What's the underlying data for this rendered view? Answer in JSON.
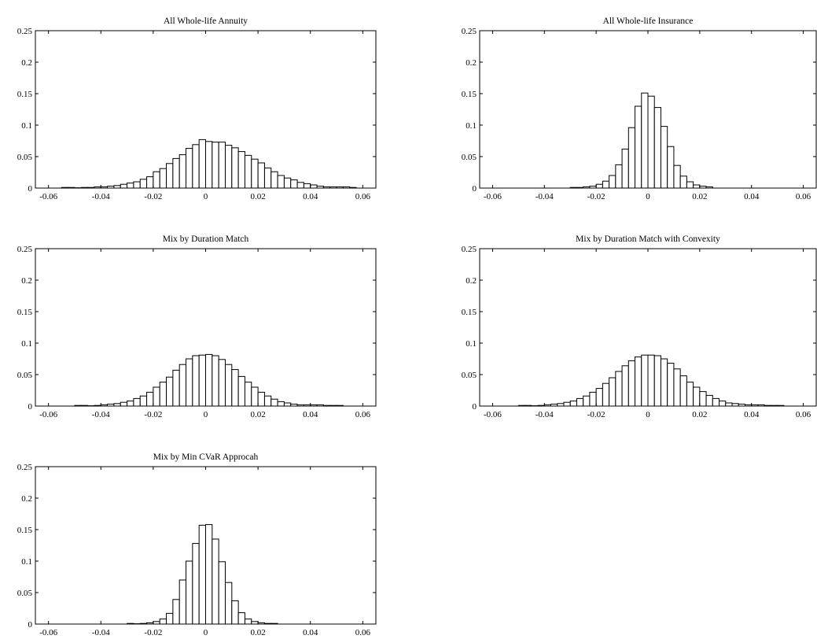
{
  "chart_data": [
    {
      "type": "bar",
      "title": "All Whole-life Annuity",
      "xlabel": "",
      "ylabel": "",
      "xlim": [
        -0.065,
        0.065
      ],
      "ylim": [
        0,
        0.25
      ],
      "xticks": [
        -0.06,
        -0.04,
        -0.02,
        0,
        0.02,
        0.04,
        0.06
      ],
      "xtick_labels": [
        "-0.06",
        "-0.04",
        "-0.02",
        "0",
        "0.02",
        "0.04",
        "0.06"
      ],
      "yticks": [
        0,
        0.05,
        0.1,
        0.15,
        0.2,
        0.25
      ],
      "ytick_labels": [
        "0",
        "0.05",
        "0.1",
        "0.15",
        "0.2",
        "0.25"
      ],
      "bin_start": -0.055,
      "bin_width": 0.0025,
      "values": [
        0.001,
        0.001,
        0.0005,
        0.001,
        0.001,
        0.002,
        0.002,
        0.003,
        0.004,
        0.006,
        0.008,
        0.01,
        0.014,
        0.018,
        0.026,
        0.031,
        0.039,
        0.047,
        0.053,
        0.063,
        0.069,
        0.077,
        0.074,
        0.073,
        0.073,
        0.068,
        0.064,
        0.058,
        0.052,
        0.046,
        0.04,
        0.032,
        0.026,
        0.02,
        0.016,
        0.013,
        0.009,
        0.007,
        0.005,
        0.003,
        0.002,
        0.002,
        0.002,
        0.002,
        0.001
      ]
    },
    {
      "type": "bar",
      "title": "All Whole-life Insurance",
      "xlabel": "",
      "ylabel": "",
      "xlim": [
        -0.065,
        0.065
      ],
      "ylim": [
        0,
        0.25
      ],
      "xticks": [
        -0.06,
        -0.04,
        -0.02,
        0,
        0.02,
        0.04,
        0.06
      ],
      "xtick_labels": [
        "-0.06",
        "-0.04",
        "-0.02",
        "0",
        "0.02",
        "0.04",
        "0.06"
      ],
      "yticks": [
        0,
        0.05,
        0.1,
        0.15,
        0.2,
        0.25
      ],
      "ytick_labels": [
        "0",
        "0.05",
        "0.1",
        "0.15",
        "0.2",
        "0.25"
      ],
      "bin_start": -0.03,
      "bin_width": 0.0025,
      "values": [
        0.001,
        0.001,
        0.002,
        0.003,
        0.006,
        0.011,
        0.02,
        0.037,
        0.062,
        0.096,
        0.13,
        0.151,
        0.146,
        0.128,
        0.098,
        0.066,
        0.036,
        0.019,
        0.01,
        0.005,
        0.003,
        0.002
      ]
    },
    {
      "type": "bar",
      "title": "Mix by Duration Match",
      "xlabel": "",
      "ylabel": "",
      "xlim": [
        -0.065,
        0.065
      ],
      "ylim": [
        0,
        0.25
      ],
      "xticks": [
        -0.06,
        -0.04,
        -0.02,
        0,
        0.02,
        0.04,
        0.06
      ],
      "xtick_labels": [
        "-0.06",
        "-0.04",
        "-0.02",
        "0",
        "0.02",
        "0.04",
        "0.06"
      ],
      "yticks": [
        0,
        0.05,
        0.1,
        0.15,
        0.2,
        0.25
      ],
      "ytick_labels": [
        "0",
        "0.05",
        "0.1",
        "0.15",
        "0.2",
        "0.25"
      ],
      "bin_start": -0.05,
      "bin_width": 0.0025,
      "values": [
        0.001,
        0.001,
        0.0005,
        0.001,
        0.002,
        0.003,
        0.004,
        0.006,
        0.008,
        0.012,
        0.016,
        0.022,
        0.03,
        0.038,
        0.046,
        0.057,
        0.066,
        0.075,
        0.08,
        0.081,
        0.082,
        0.08,
        0.074,
        0.066,
        0.058,
        0.047,
        0.038,
        0.03,
        0.022,
        0.016,
        0.011,
        0.007,
        0.005,
        0.003,
        0.002,
        0.002,
        0.002,
        0.002,
        0.001,
        0.001,
        0.001
      ]
    },
    {
      "type": "bar",
      "title": "Mix by Duration Match with Convexity",
      "xlabel": "",
      "ylabel": "",
      "xlim": [
        -0.065,
        0.065
      ],
      "ylim": [
        0,
        0.25
      ],
      "xticks": [
        -0.06,
        -0.04,
        -0.02,
        0,
        0.02,
        0.04,
        0.06
      ],
      "xtick_labels": [
        "-0.06",
        "-0.04",
        "-0.02",
        "0",
        "0.02",
        "0.04",
        "0.06"
      ],
      "yticks": [
        0,
        0.05,
        0.1,
        0.15,
        0.2,
        0.25
      ],
      "ytick_labels": [
        "0",
        "0.05",
        "0.1",
        "0.15",
        "0.2",
        "0.25"
      ],
      "bin_start": -0.05,
      "bin_width": 0.0025,
      "values": [
        0.001,
        0.001,
        0.0005,
        0.001,
        0.002,
        0.003,
        0.004,
        0.006,
        0.008,
        0.012,
        0.016,
        0.022,
        0.028,
        0.036,
        0.045,
        0.055,
        0.064,
        0.072,
        0.078,
        0.081,
        0.081,
        0.08,
        0.075,
        0.068,
        0.059,
        0.048,
        0.038,
        0.03,
        0.023,
        0.017,
        0.012,
        0.008,
        0.005,
        0.004,
        0.003,
        0.002,
        0.002,
        0.002,
        0.001,
        0.001,
        0.001
      ]
    },
    {
      "type": "bar",
      "title": "Mix by Min CVaR Approcah",
      "xlabel": "",
      "ylabel": "",
      "xlim": [
        -0.065,
        0.065
      ],
      "ylim": [
        0,
        0.25
      ],
      "xticks": [
        -0.06,
        -0.04,
        -0.02,
        0,
        0.02,
        0.04,
        0.06
      ],
      "xtick_labels": [
        "-0.06",
        "-0.04",
        "-0.02",
        "0",
        "0.02",
        "0.04",
        "0.06"
      ],
      "yticks": [
        0,
        0.05,
        0.1,
        0.15,
        0.2,
        0.25
      ],
      "ytick_labels": [
        "0",
        "0.05",
        "0.1",
        "0.15",
        "0.2",
        "0.25"
      ],
      "bin_start": -0.03,
      "bin_width": 0.0025,
      "values": [
        0.001,
        0.0005,
        0.001,
        0.002,
        0.004,
        0.008,
        0.017,
        0.039,
        0.07,
        0.1,
        0.128,
        0.157,
        0.158,
        0.135,
        0.099,
        0.066,
        0.037,
        0.018,
        0.008,
        0.004,
        0.002,
        0.001,
        0.001
      ]
    }
  ]
}
